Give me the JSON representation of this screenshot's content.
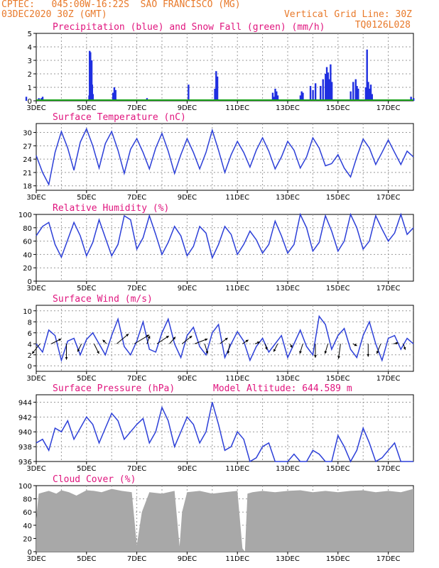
{
  "header": {
    "line1_left": "CPTEC:   045:00W-16:22S  SAO FRANCISCO (MG)",
    "line2_left": "03DEC2020 30Z (GMT)",
    "line2_right": "Vertical Grid Line: 30Z",
    "line3_right": "TQ0126L028",
    "colors": {
      "header": "#e8792a",
      "title": "#e0157e",
      "line": "#2c3fd8",
      "bar": "#1f2fe0",
      "snow": "#18a018",
      "cloud": "#a8a8a8"
    }
  },
  "x_ticks": [
    "3DEC",
    "5DEC",
    "7DEC",
    "9DEC",
    "11DEC",
    "13DEC",
    "15DEC",
    "17DEC"
  ],
  "chart_data": [
    {
      "type": "bar",
      "title": "Precipitation (blue) and Snow Fall (green) (mm/h)",
      "ylim": [
        0,
        5
      ],
      "yticks": [
        "0",
        "1",
        "2",
        "3",
        "4",
        "5"
      ],
      "series": [
        {
          "name": "blue",
          "x": [
            2.6,
            3.05,
            3.1,
            3.15,
            3.2,
            3.25,
            5.1,
            5.12,
            5.15,
            5.2,
            5.22,
            5.25,
            6.05,
            6.1,
            6.15,
            7.4,
            7.5,
            9.05,
            10.1,
            10.15,
            10.2,
            12.4,
            12.45,
            12.5,
            12.55,
            12.6,
            13.5,
            13.55,
            13.6,
            13.9,
            14.0,
            14.1,
            14.3,
            14.4,
            14.5,
            14.55,
            14.6,
            14.65,
            14.7,
            14.75,
            15.5,
            15.6,
            15.7,
            15.75,
            15.8,
            16.1,
            16.15,
            16.2,
            16.25,
            16.3,
            16.35,
            17.9,
            18.0
          ],
          "values": [
            0.3,
            0.1,
            0.2,
            0.1,
            0.2,
            0.3,
            0.4,
            3.7,
            3.6,
            3.0,
            1.2,
            0.5,
            0.6,
            1.0,
            0.8,
            0.2,
            0.1,
            1.2,
            0.9,
            2.2,
            1.8,
            0.6,
            0.3,
            0.9,
            0.7,
            0.4,
            0.4,
            0.7,
            0.6,
            1.1,
            0.8,
            1.3,
            1.1,
            1.6,
            2.0,
            2.5,
            2.1,
            1.6,
            2.7,
            1.4,
            0.7,
            1.4,
            1.6,
            1.1,
            0.9,
            1.0,
            3.8,
            1.4,
            0.9,
            1.2,
            0.5,
            0.3,
            0.2
          ]
        },
        {
          "name": "green",
          "values": [
            0
          ]
        }
      ]
    },
    {
      "type": "line",
      "title": "Surface Temperature (nC)",
      "ylim": [
        17,
        32
      ],
      "yticks": [
        "18",
        "21",
        "24",
        "27",
        "30"
      ],
      "x": [
        3.0,
        3.25,
        3.5,
        3.75,
        4.0,
        4.25,
        4.5,
        4.75,
        5.0,
        5.25,
        5.5,
        5.75,
        6.0,
        6.25,
        6.5,
        6.75,
        7.0,
        7.25,
        7.5,
        7.75,
        8.0,
        8.25,
        8.5,
        8.75,
        9.0,
        9.25,
        9.5,
        9.75,
        10.0,
        10.25,
        10.5,
        10.75,
        11.0,
        11.25,
        11.5,
        11.75,
        12.0,
        12.25,
        12.5,
        12.75,
        13.0,
        13.25,
        13.5,
        13.75,
        14.0,
        14.25,
        14.5,
        14.75,
        15.0,
        15.25,
        15.5,
        15.75,
        16.0,
        16.25,
        16.5,
        16.75,
        17.0,
        17.25,
        17.5,
        17.75,
        18.0
      ],
      "series": [
        {
          "values": [
            24.8,
            21.0,
            18.3,
            25.5,
            30.2,
            26.5,
            21.5,
            27.8,
            30.8,
            27.0,
            22.0,
            27.5,
            30.2,
            26.0,
            20.8,
            26.2,
            28.6,
            25.5,
            21.8,
            26.5,
            29.8,
            25.8,
            20.8,
            25.0,
            28.6,
            25.5,
            21.8,
            25.5,
            30.5,
            26.0,
            21.0,
            25.0,
            28.0,
            25.5,
            22.2,
            26.0,
            28.8,
            25.8,
            21.8,
            24.5,
            28.0,
            26.0,
            22.0,
            24.5,
            28.8,
            26.5,
            22.5,
            23.0,
            25.0,
            22.0,
            20.0,
            24.5,
            28.5,
            26.5,
            22.8,
            25.5,
            28.3,
            25.5,
            22.8,
            25.8,
            24.5
          ]
        }
      ]
    },
    {
      "type": "line",
      "title": "Relative Humidity (%)",
      "ylim": [
        0,
        100
      ],
      "yticks": [
        "0",
        "20",
        "40",
        "60",
        "80",
        "100"
      ],
      "x": [
        3.0,
        3.25,
        3.5,
        3.75,
        4.0,
        4.25,
        4.5,
        4.75,
        5.0,
        5.25,
        5.5,
        5.75,
        6.0,
        6.25,
        6.5,
        6.75,
        7.0,
        7.25,
        7.5,
        7.75,
        8.0,
        8.25,
        8.5,
        8.75,
        9.0,
        9.25,
        9.5,
        9.75,
        10.0,
        10.25,
        10.5,
        10.75,
        11.0,
        11.25,
        11.5,
        11.75,
        12.0,
        12.25,
        12.5,
        12.75,
        13.0,
        13.25,
        13.5,
        13.75,
        14.0,
        14.25,
        14.5,
        14.75,
        15.0,
        15.25,
        15.5,
        15.75,
        16.0,
        16.25,
        16.5,
        16.75,
        17.0,
        17.25,
        17.5,
        17.75,
        18.0
      ],
      "series": [
        {
          "values": [
            68,
            82,
            88,
            55,
            36,
            62,
            88,
            68,
            38,
            58,
            92,
            65,
            38,
            55,
            98,
            92,
            48,
            65,
            98,
            70,
            40,
            58,
            82,
            68,
            38,
            52,
            82,
            72,
            35,
            55,
            82,
            70,
            40,
            55,
            75,
            62,
            42,
            55,
            90,
            68,
            42,
            55,
            100,
            80,
            45,
            58,
            98,
            75,
            45,
            60,
            100,
            80,
            48,
            60,
            98,
            78,
            60,
            72,
            100,
            70,
            80
          ]
        }
      ]
    },
    {
      "type": "line",
      "title": "Surface Wind (m/s)",
      "ylim": [
        -1,
        11
      ],
      "yticks": [
        "0",
        "2",
        "4",
        "6",
        "8",
        "10"
      ],
      "x": [
        3.0,
        3.25,
        3.5,
        3.75,
        4.0,
        4.25,
        4.5,
        4.75,
        5.0,
        5.25,
        5.5,
        5.75,
        6.0,
        6.25,
        6.5,
        6.75,
        7.0,
        7.25,
        7.5,
        7.75,
        8.0,
        8.25,
        8.5,
        8.75,
        9.0,
        9.25,
        9.5,
        9.75,
        10.0,
        10.25,
        10.5,
        10.75,
        11.0,
        11.25,
        11.5,
        11.75,
        12.0,
        12.25,
        12.5,
        12.75,
        13.0,
        13.25,
        13.5,
        13.75,
        14.0,
        14.25,
        14.5,
        14.75,
        15.0,
        15.25,
        15.5,
        15.75,
        16.0,
        16.25,
        16.5,
        16.75,
        17.0,
        17.25,
        17.5,
        17.75,
        18.0
      ],
      "series": [
        {
          "values": [
            4.0,
            2.5,
            6.5,
            5.5,
            1.0,
            4.5,
            5.0,
            2.0,
            4.8,
            6.0,
            4.0,
            2.0,
            5.5,
            8.5,
            3.5,
            2.0,
            4.5,
            8.0,
            3.0,
            2.5,
            6.0,
            8.5,
            4.0,
            1.5,
            5.5,
            7.0,
            3.5,
            2.0,
            6.0,
            7.5,
            1.5,
            4.0,
            6.2,
            4.5,
            1.0,
            3.5,
            5.0,
            2.5,
            4.0,
            5.5,
            1.5,
            4.0,
            6.5,
            3.5,
            2.0,
            9.0,
            7.5,
            3.0,
            5.5,
            6.8,
            3.0,
            1.5,
            5.5,
            8.0,
            4.0,
            1.0,
            5.0,
            5.5,
            3.0,
            5.0,
            4.0
          ]
        }
      ],
      "wind_vectors": [
        {
          "x": 3.15,
          "u": -0.8,
          "v": -1.0
        },
        {
          "x": 3.6,
          "u": 1.0,
          "v": 0.5
        },
        {
          "x": 4.2,
          "u": 0.0,
          "v": -1.6
        },
        {
          "x": 4.8,
          "u": -0.4,
          "v": -0.8
        },
        {
          "x": 5.3,
          "u": 0.5,
          "v": -1.0
        },
        {
          "x": 5.8,
          "u": -0.4,
          "v": 0.4
        },
        {
          "x": 6.2,
          "u": 1.2,
          "v": 1.0
        },
        {
          "x": 6.9,
          "u": 1.5,
          "v": 0.9
        },
        {
          "x": 7.4,
          "u": 0.3,
          "v": 0.8
        },
        {
          "x": 7.8,
          "u": 1.2,
          "v": 0.8
        },
        {
          "x": 8.3,
          "u": 0.6,
          "v": 0.7
        },
        {
          "x": 8.8,
          "u": 1.0,
          "v": 0.8
        },
        {
          "x": 9.3,
          "u": 1.3,
          "v": 0.5
        },
        {
          "x": 9.7,
          "u": 0.3,
          "v": -1.0
        },
        {
          "x": 10.3,
          "u": 0.8,
          "v": 0.6
        },
        {
          "x": 10.7,
          "u": -0.2,
          "v": -1.0
        },
        {
          "x": 11.2,
          "u": 0.6,
          "v": 0.4
        },
        {
          "x": 11.7,
          "u": 0.5,
          "v": 0.2
        },
        {
          "x": 12.1,
          "u": 0.2,
          "v": -0.6
        },
        {
          "x": 12.6,
          "u": -0.4,
          "v": -0.8
        },
        {
          "x": 13.1,
          "u": 0.2,
          "v": -0.4
        },
        {
          "x": 13.6,
          "u": -0.3,
          "v": -1.0
        },
        {
          "x": 14.1,
          "u": 0.0,
          "v": -1.4
        },
        {
          "x": 14.6,
          "u": -0.3,
          "v": -1.0
        },
        {
          "x": 15.1,
          "u": -0.2,
          "v": -1.5
        },
        {
          "x": 15.6,
          "u": 0.4,
          "v": -0.2
        },
        {
          "x": 16.2,
          "u": 0.0,
          "v": -1.3
        },
        {
          "x": 16.7,
          "u": -0.4,
          "v": -1.0
        },
        {
          "x": 17.2,
          "u": 0.5,
          "v": 0.1
        },
        {
          "x": 17.6,
          "u": 0.2,
          "v": -0.6
        }
      ]
    },
    {
      "type": "line",
      "title": "Surface Pressure (hPa)",
      "annotation": "Model Altitude: 644.589 m",
      "ylim": [
        936,
        945
      ],
      "yticks": [
        "936",
        "938",
        "940",
        "942",
        "944"
      ],
      "x": [
        3.0,
        3.25,
        3.5,
        3.75,
        4.0,
        4.25,
        4.5,
        4.75,
        5.0,
        5.25,
        5.5,
        5.75,
        6.0,
        6.25,
        6.5,
        6.75,
        7.0,
        7.25,
        7.5,
        7.75,
        8.0,
        8.25,
        8.5,
        8.75,
        9.0,
        9.25,
        9.5,
        9.75,
        10.0,
        10.25,
        10.5,
        10.75,
        11.0,
        11.25,
        11.5,
        11.75,
        12.0,
        12.25,
        12.5,
        12.75,
        13.0,
        13.25,
        13.5,
        13.75,
        14.0,
        14.25,
        14.5,
        14.75,
        15.0,
        15.25,
        15.5,
        15.75,
        16.0,
        16.25,
        16.5,
        16.75,
        17.0,
        17.25,
        17.5,
        17.75,
        18.0
      ],
      "series": [
        {
          "values": [
            938.5,
            939.0,
            937.5,
            940.5,
            940.0,
            941.5,
            939.0,
            940.5,
            942.0,
            941.0,
            938.5,
            940.5,
            942.5,
            941.5,
            939.0,
            940.0,
            941.0,
            941.8,
            938.5,
            940.0,
            943.3,
            941.5,
            938.0,
            940.0,
            942.0,
            941.0,
            938.5,
            940.0,
            944.0,
            941.0,
            937.5,
            938.0,
            940.0,
            939.0,
            936.0,
            936.5,
            938.0,
            938.5,
            936.0,
            935.5,
            936.0,
            937.0,
            935.0,
            935.5,
            937.5,
            937.0,
            935.0,
            936.0,
            939.5,
            938.0,
            935.5,
            937.5,
            940.5,
            938.5,
            935.0,
            936.5,
            937.5,
            938.5,
            935.5,
            935.5,
            936.0
          ]
        }
      ]
    },
    {
      "type": "area",
      "title": "Cloud Cover (%)",
      "ylim": [
        0,
        100
      ],
      "yticks": [
        "0",
        "20",
        "40",
        "60",
        "80",
        "100"
      ],
      "x": [
        3.0,
        3.1,
        3.3,
        3.5,
        3.8,
        4.0,
        4.3,
        4.6,
        5.0,
        5.3,
        5.6,
        6.0,
        6.4,
        6.8,
        7.0,
        7.2,
        7.5,
        8.0,
        8.5,
        8.7,
        8.8,
        9.0,
        9.5,
        10.0,
        10.5,
        11.0,
        11.2,
        11.3,
        11.4,
        11.6,
        12.0,
        12.5,
        13.0,
        13.5,
        14.0,
        14.5,
        15.0,
        15.5,
        16.0,
        16.5,
        17.0,
        17.5,
        18.0
      ],
      "series": [
        {
          "values": [
            50,
            88,
            90,
            92,
            88,
            93,
            90,
            85,
            93,
            92,
            90,
            95,
            92,
            90,
            10,
            60,
            90,
            88,
            92,
            8,
            60,
            90,
            92,
            88,
            90,
            92,
            5,
            0,
            88,
            90,
            92,
            90,
            92,
            93,
            90,
            92,
            90,
            92,
            93,
            90,
            92,
            90,
            95
          ]
        }
      ]
    }
  ]
}
